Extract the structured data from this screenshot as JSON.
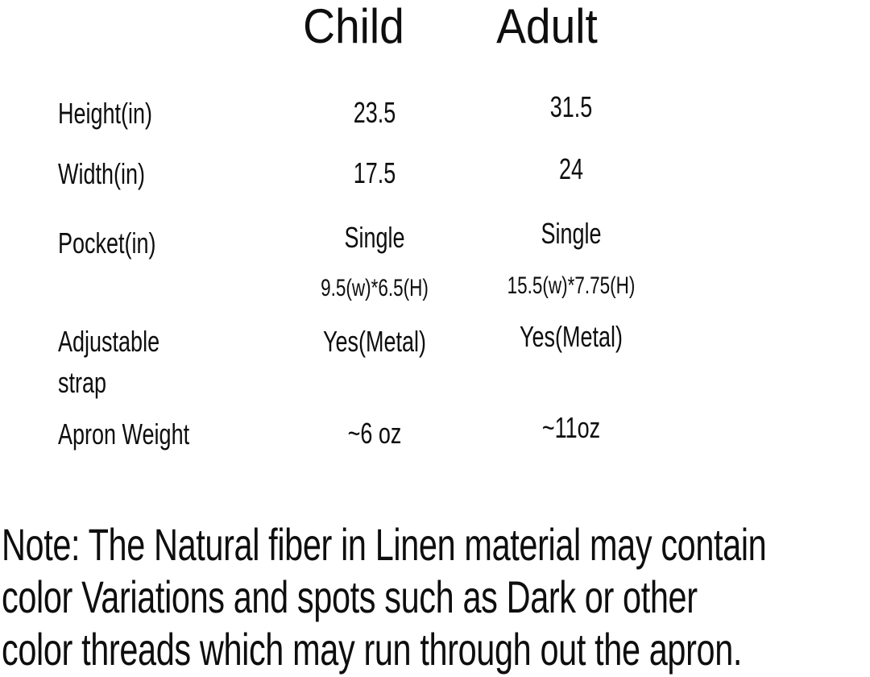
{
  "table": {
    "columns": [
      "Child",
      "Adult"
    ],
    "rows": [
      {
        "label": "Height(in)",
        "child": "23.5",
        "adult": "31.5"
      },
      {
        "label": "Width(in)",
        "child": "17.5",
        "adult": "24"
      },
      {
        "label": "Pocket(in)",
        "child": "Single",
        "adult": "Single"
      },
      {
        "label": "",
        "child": "9.5(w)*6.5(H)",
        "adult": "15.5(w)*7.75(H)"
      },
      {
        "label": "Adjustable strap",
        "child": "Yes(Metal)",
        "adult": "Yes(Metal)"
      },
      {
        "label": "Apron Weight",
        "child": "~6 oz",
        "adult": "~11oz"
      }
    ]
  },
  "note": {
    "lines": [
      "Note: The Natural fiber in Linen material may contain",
      "color Variations and spots such as Dark or other",
      "color threads which may run through out the apron."
    ]
  },
  "colors": {
    "text": "#0e0e0e",
    "background": "#ffffff"
  }
}
